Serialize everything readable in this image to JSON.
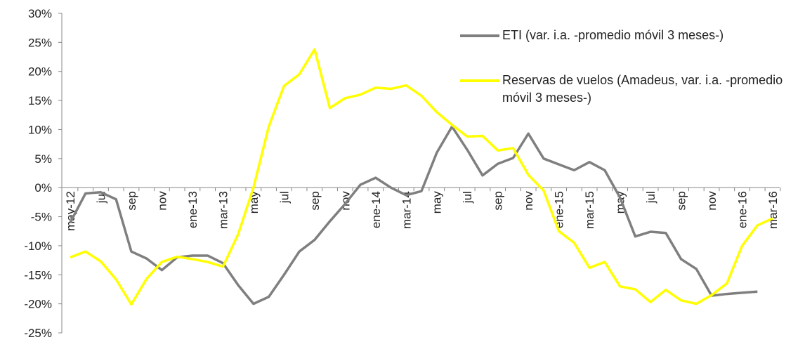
{
  "chart_data": {
    "type": "line",
    "categories": [
      "may-12",
      null,
      "jul",
      null,
      "sep",
      null,
      "nov",
      null,
      "ene-13",
      null,
      "mar-13",
      null,
      "may",
      null,
      "jul",
      null,
      "sep",
      null,
      "nov",
      null,
      "ene-14",
      null,
      "mar-14",
      null,
      "may",
      null,
      "jul",
      null,
      "sep",
      null,
      "nov",
      null,
      "ene-15",
      null,
      "mar-15",
      null,
      "may",
      null,
      "jul",
      null,
      "sep",
      null,
      "nov",
      null,
      "ene-16",
      null,
      "mar-16"
    ],
    "series": [
      {
        "name": "ETI (var. i.a. -promedio móvil 3 meses-)",
        "color": "#7f7f7f",
        "values": [
          -6,
          -1,
          -0.8,
          -2,
          -11,
          -12.2,
          -14.2,
          -12,
          -11.7,
          -11.7,
          -13,
          -16.8,
          -20,
          -18.8,
          -15,
          -11,
          -9,
          -5.8,
          -2.8,
          0.5,
          1.7,
          0,
          -1.3,
          -0.6,
          6,
          10.5,
          6.5,
          2.1,
          4.1,
          5.1,
          9.3,
          5,
          4,
          3,
          4.4,
          3,
          -1.7,
          -8.4,
          -7.6,
          -7.8,
          -12.3,
          -14,
          -18.6,
          -18.3,
          -18.1,
          -17.9,
          null
        ]
      },
      {
        "name": "Reservas de vuelos (Amadeus, var. i.a. -promedio móvil 3 meses-)",
        "color": "#ffff00",
        "values": [
          -12,
          -11,
          -12.7,
          -15.8,
          -20.1,
          -15.7,
          -12.8,
          -11.9,
          -12.3,
          -12.8,
          -13.6,
          -8,
          0,
          10.5,
          17.5,
          19.5,
          23.8,
          13.7,
          15.4,
          16,
          17.2,
          17,
          17.6,
          15.8,
          13,
          10.8,
          8.8,
          8.9,
          6.4,
          6.8,
          2.2,
          -0.5,
          -7.5,
          -9.5,
          -13.8,
          -12.8,
          -17,
          -17.5,
          -19.7,
          -17.6,
          -19.4,
          -20,
          -18.5,
          -16.5,
          -10,
          -6.5,
          -5.3
        ]
      }
    ],
    "ylim": [
      -25,
      30
    ],
    "yticks": [
      {
        "value": -25,
        "label": "-25%"
      },
      {
        "value": -20,
        "label": "-20%"
      },
      {
        "value": -15,
        "label": "-15%"
      },
      {
        "value": -10,
        "label": "-10%"
      },
      {
        "value": -5,
        "label": "-5%"
      },
      {
        "value": 0,
        "label": "0%"
      },
      {
        "value": 5,
        "label": "5%"
      },
      {
        "value": 10,
        "label": "10%"
      },
      {
        "value": 15,
        "label": "15%"
      },
      {
        "value": 20,
        "label": "20%"
      },
      {
        "value": 25,
        "label": "25%"
      },
      {
        "value": 30,
        "label": "30%"
      }
    ],
    "grid": false
  }
}
